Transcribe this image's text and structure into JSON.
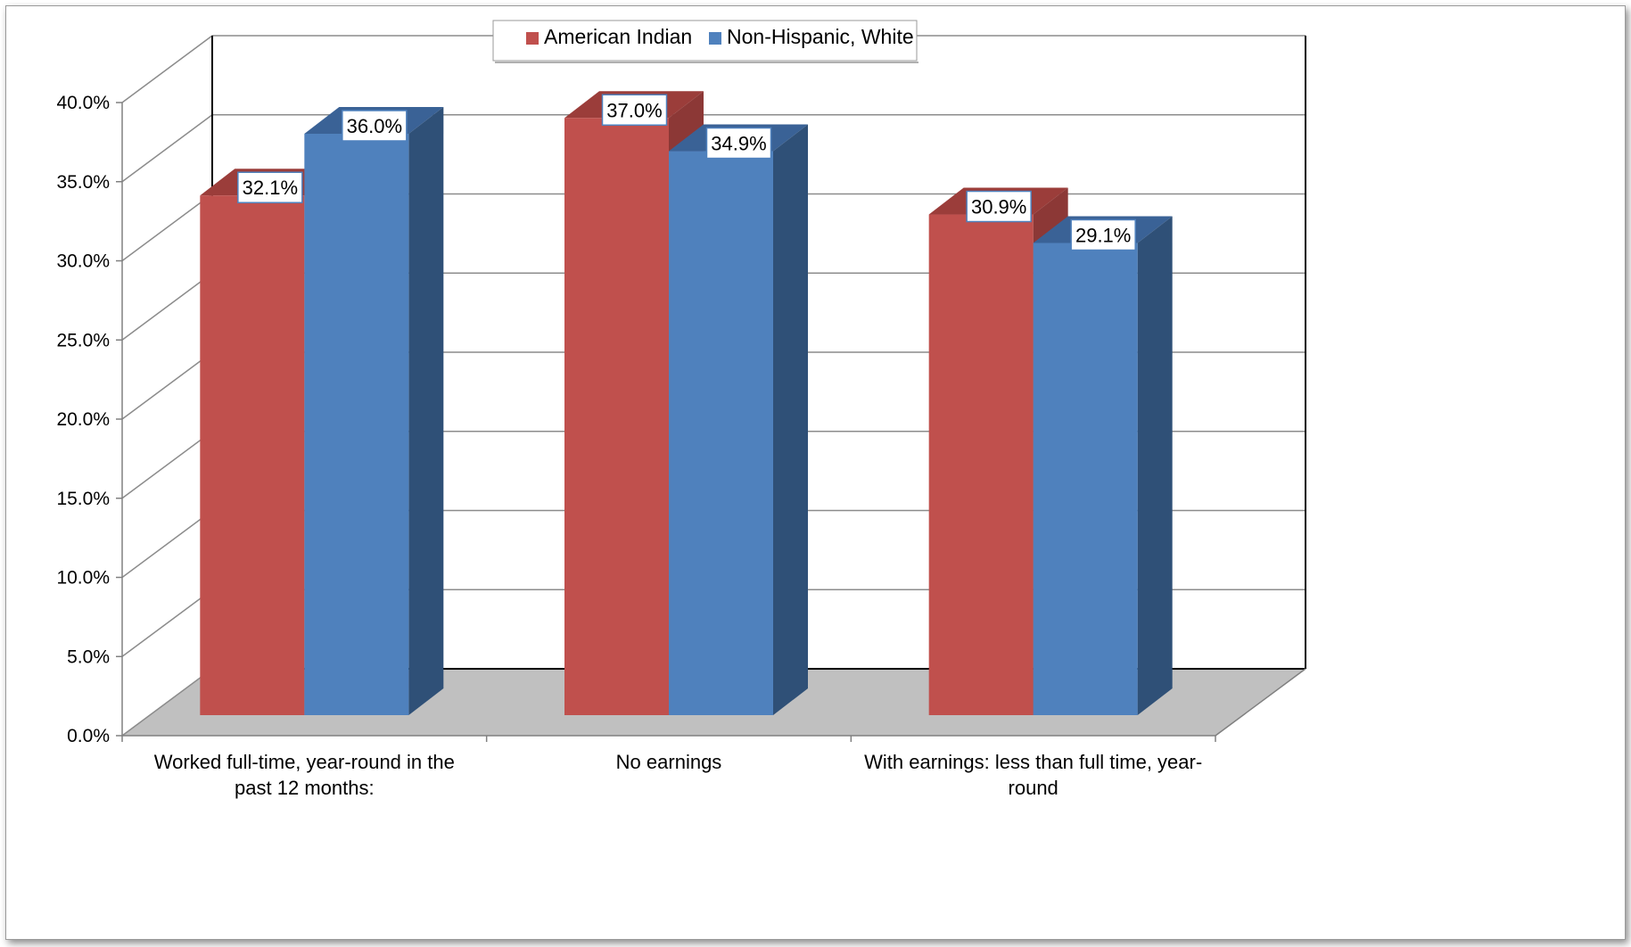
{
  "chart_data": {
    "type": "bar",
    "categories": [
      [
        "Worked full-time, year-round in the",
        "past 12 months:"
      ],
      [
        "No earnings"
      ],
      [
        "With earnings: less than full time, year-",
        "round"
      ]
    ],
    "series": [
      {
        "name": "American Indian",
        "values": [
          32.1,
          37.0,
          30.9
        ],
        "labels": [
          "32.1%",
          "37.0%",
          "30.9%"
        ]
      },
      {
        "name": "Non-Hispanic, White",
        "values": [
          36.0,
          34.9,
          29.1
        ],
        "labels": [
          "36.0%",
          "34.9%",
          "29.1%"
        ]
      }
    ],
    "y_ticks": [
      "0.0%",
      "5.0%",
      "10.0%",
      "15.0%",
      "20.0%",
      "25.0%",
      "30.0%",
      "35.0%",
      "40.0%"
    ],
    "ylim": [
      0,
      40
    ],
    "legend_position": "top-center",
    "grid": true,
    "style": "3d-clustered-column",
    "colors": {
      "American Indian": {
        "front": "#c0504d",
        "side": "#8c3836",
        "top": "#9b3d3a"
      },
      "Non-Hispanic, White": {
        "front": "#4f81bd",
        "side": "#2f5077",
        "top": "#3a6296"
      },
      "floor": "#c0c0c0",
      "label_border": "#4f81bd"
    }
  }
}
